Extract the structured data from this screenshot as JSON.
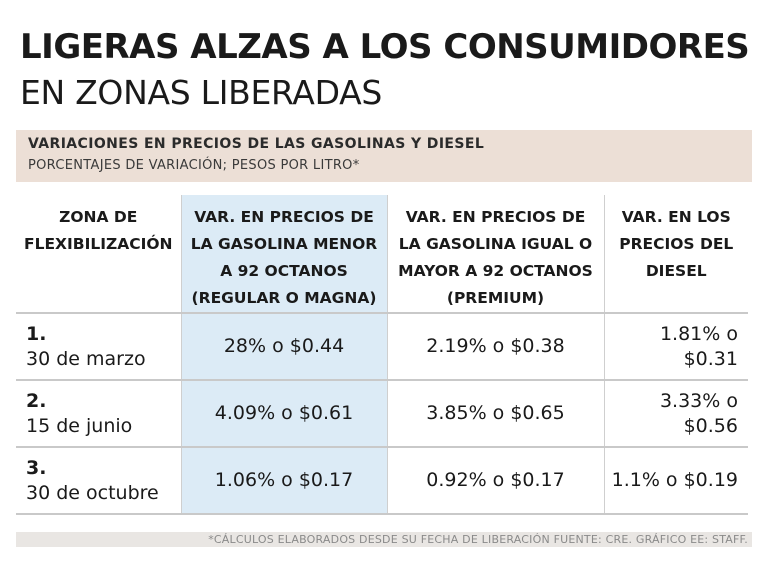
{
  "title": "LIGERAS ALZAS A LOS CONSUMIDORES",
  "subtitle": "EN ZONAS LIBERADAS",
  "band": {
    "heading": "VARIACIONES EN PRECIOS DE LAS GASOLINAS Y DIESEL",
    "subheading": "PORCENTAJES DE VARIACIÓN; PESOS POR LITRO*"
  },
  "chart_data": {
    "type": "table",
    "title": "VARIACIONES EN PRECIOS DE LAS GASOLINAS Y DIESEL",
    "subtitle": "PORCENTAJES DE VARIACIÓN; PESOS POR LITRO*",
    "columns": [
      [
        "ZONA DE",
        "FLEXIBILIZACIÓN"
      ],
      [
        "VAR. EN PRECIOS DE",
        "LA GASOLINA MENOR",
        "A 92 OCTANOS",
        "(REGULAR O MAGNA)"
      ],
      [
        "VAR. EN PRECIOS DE",
        "LA GASOLINA IGUAL O",
        "MAYOR A 92 OCTANOS",
        "(PREMIUM)"
      ],
      [
        "VAR. EN LOS",
        "PRECIOS DEL",
        "DIESEL"
      ]
    ],
    "rows": [
      {
        "zone_number": "1.",
        "zone_date": "30 de marzo",
        "regular": "28% o $0.44",
        "premium": "2.19% o $0.38",
        "diesel_lines": [
          "1.81% o",
          "$0.31"
        ]
      },
      {
        "zone_number": "2.",
        "zone_date": "15 de junio",
        "regular": "4.09% o $0.61",
        "premium": "3.85% o $0.65",
        "diesel_lines": [
          "3.33% o",
          "$0.56"
        ]
      },
      {
        "zone_number": "3.",
        "zone_date": "30 de octubre",
        "regular": "1.06% o $0.17",
        "premium": "0.92% o $0.17",
        "diesel_lines": [
          "1.1% o $0.19"
        ]
      }
    ]
  },
  "footer": "*CÁLCULOS ELABORADOS DESDE SU FECHA DE LIBERACIÓN FUENTE: CRE. GRÁFICO EE: STAFF.",
  "colors": {
    "band": "#ecdfd6",
    "highlight_column": "#dcebf6",
    "footer_band": "#e9e6e3"
  }
}
